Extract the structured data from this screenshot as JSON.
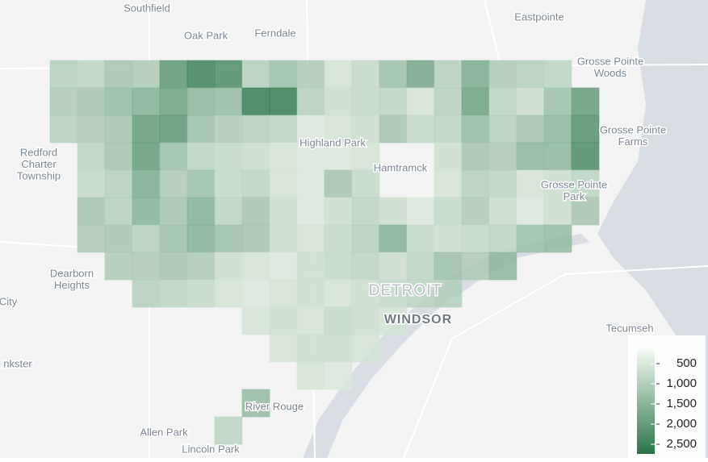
{
  "map": {
    "places": [
      {
        "lines": [
          "Southfield"
        ]
      },
      {
        "lines": [
          "Oak Park"
        ]
      },
      {
        "lines": [
          "Ferndale"
        ]
      },
      {
        "lines": [
          "Eastpointe"
        ]
      },
      {
        "lines": [
          "Grosse Pointe",
          "Woods"
        ]
      },
      {
        "lines": [
          "Grosse Pointe",
          "Farms"
        ]
      },
      {
        "lines": [
          "Redford",
          "Charter",
          "Township"
        ]
      },
      {
        "lines": [
          "Highland Park"
        ]
      },
      {
        "lines": [
          "Hamtramck"
        ]
      },
      {
        "lines": [
          "Grosse Pointe",
          "Park"
        ]
      },
      {
        "lines": [
          "Dearborn",
          "Heights"
        ]
      },
      {
        "lines": [
          "City"
        ]
      },
      {
        "lines": [
          "DETROIT"
        ]
      },
      {
        "lines": [
          "WINDSOR"
        ]
      },
      {
        "lines": [
          "Tecumseh"
        ]
      },
      {
        "lines": [
          "nkster"
        ]
      },
      {
        "lines": [
          "River Rouge"
        ]
      },
      {
        "lines": [
          "Allen Park"
        ]
      },
      {
        "lines": [
          "Lincoln Park"
        ]
      }
    ],
    "cells": [
      [
        1000,
        900,
        1200,
        1100,
        2100,
        2500,
        2300,
        1000,
        1300,
        1100,
        600,
        800,
        1300,
        1800,
        1000,
        1700,
        1100,
        1000,
        900,
        null
      ],
      [
        1100,
        1200,
        1400,
        1600,
        1900,
        1500,
        1400,
        2600,
        2600,
        1000,
        700,
        800,
        900,
        600,
        1000,
        1900,
        900,
        700,
        1300,
        2000
      ],
      [
        1000,
        1100,
        1200,
        2000,
        2100,
        1300,
        1100,
        1000,
        900,
        500,
        600,
        700,
        1200,
        800,
        900,
        1400,
        1000,
        1200,
        1500,
        2200
      ],
      [
        null,
        900,
        1200,
        2000,
        1300,
        900,
        800,
        700,
        600,
        500,
        500,
        600,
        null,
        null,
        700,
        1200,
        1100,
        1500,
        1500,
        2300
      ],
      [
        null,
        800,
        1000,
        1700,
        1100,
        1300,
        800,
        900,
        600,
        500,
        1200,
        800,
        null,
        null,
        600,
        1000,
        900,
        600,
        700,
        900
      ],
      [
        null,
        1200,
        1000,
        1600,
        1200,
        1600,
        900,
        1200,
        700,
        500,
        700,
        900,
        700,
        500,
        800,
        1100,
        700,
        500,
        700,
        1200
      ],
      [
        null,
        1100,
        1200,
        1000,
        1300,
        1600,
        1300,
        1200,
        700,
        600,
        800,
        1000,
        1600,
        800,
        700,
        800,
        900,
        1300,
        1400,
        null
      ],
      [
        null,
        null,
        1100,
        1100,
        1200,
        1100,
        700,
        600,
        500,
        700,
        800,
        900,
        700,
        900,
        1300,
        1100,
        1500,
        null,
        null,
        null
      ],
      [
        null,
        null,
        null,
        1000,
        900,
        800,
        600,
        500,
        600,
        700,
        600,
        700,
        800,
        900,
        1000,
        null,
        null,
        null,
        null,
        null
      ],
      [
        null,
        null,
        null,
        null,
        null,
        null,
        null,
        600,
        700,
        600,
        800,
        700,
        600,
        null,
        null,
        null,
        null,
        null,
        null,
        null
      ],
      [
        null,
        null,
        null,
        null,
        null,
        null,
        null,
        null,
        600,
        700,
        700,
        600,
        null,
        null,
        null,
        null,
        null,
        null,
        null,
        null
      ],
      [
        null,
        null,
        null,
        null,
        null,
        null,
        null,
        null,
        null,
        600,
        500,
        null,
        null,
        null,
        null,
        null,
        null,
        null,
        null,
        null
      ],
      [
        null,
        null,
        null,
        null,
        null,
        null,
        null,
        1400,
        null,
        null,
        null,
        null,
        null,
        null,
        null,
        null,
        null,
        null,
        null,
        null
      ],
      [
        null,
        null,
        null,
        null,
        null,
        null,
        900,
        null,
        null,
        null,
        null,
        null,
        null,
        null,
        null,
        null,
        null,
        null,
        null,
        null
      ]
    ],
    "scale": {
      "min": 120,
      "max": 2740,
      "colors": [
        "#f7fcf5",
        "#2b7548"
      ]
    },
    "legend": {
      "ticks": [
        500,
        {
          "value": 1000,
          "label": "1,000"
        },
        {
          "value": 1500,
          "label": "1,500"
        },
        {
          "value": 2000,
          "label": "2,000"
        },
        {
          "value": 2500,
          "label": "2,500"
        }
      ]
    }
  }
}
